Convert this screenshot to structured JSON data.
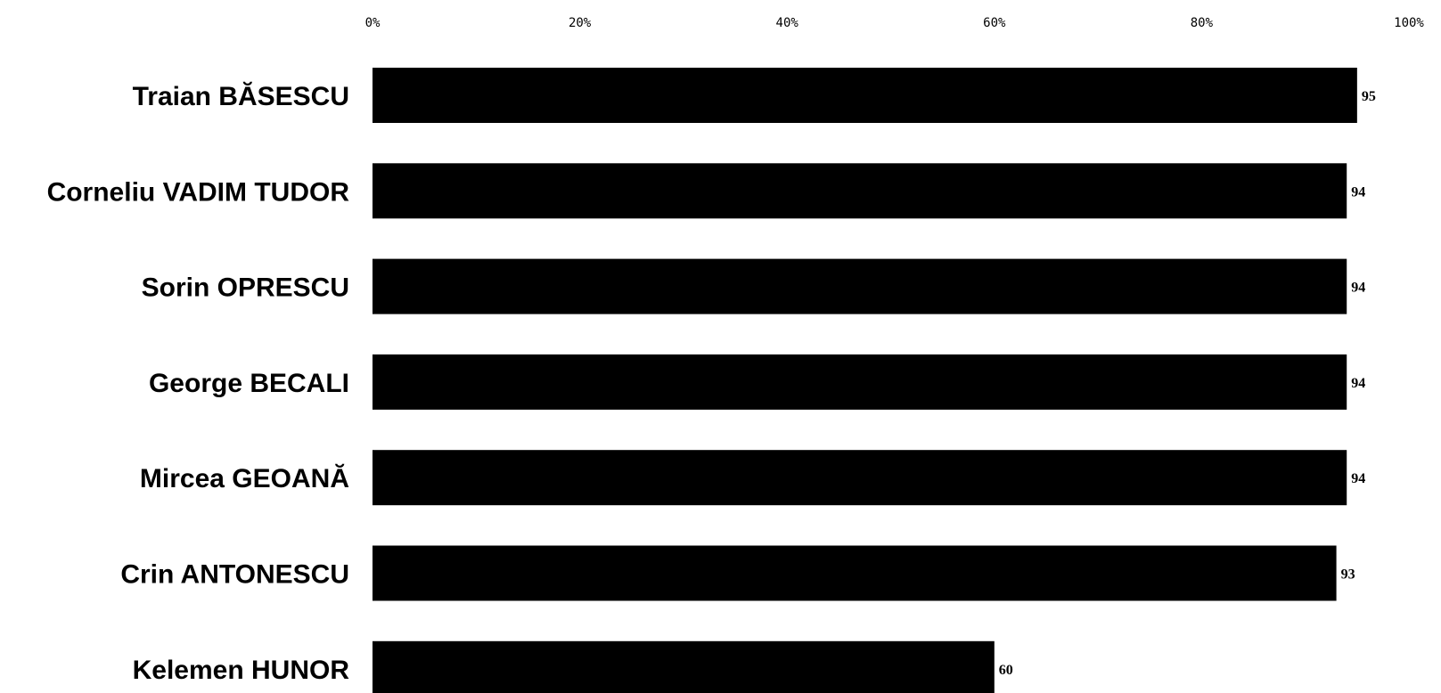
{
  "chart_data": {
    "type": "bar",
    "orientation": "horizontal",
    "title": "",
    "xlabel": "",
    "ylabel": "",
    "xlim": [
      0,
      100
    ],
    "tick_values": [
      0,
      20,
      40,
      60,
      80,
      100
    ],
    "tick_labels": [
      "0%",
      "20%",
      "40%",
      "60%",
      "80%",
      "100%"
    ],
    "categories": [
      "Traian BĂSESCU",
      "Corneliu VADIM TUDOR",
      "Sorin OPRESCU",
      "George BECALI",
      "Mircea GEOANĂ",
      "Crin ANTONESCU",
      "Kelemen HUNOR"
    ],
    "values": [
      95,
      94,
      94,
      94,
      94,
      93,
      60
    ],
    "value_labels": [
      "95",
      "94",
      "94",
      "94",
      "94",
      "93",
      "60"
    ],
    "grid": false,
    "legend": "none",
    "bar_color": "#000000"
  }
}
